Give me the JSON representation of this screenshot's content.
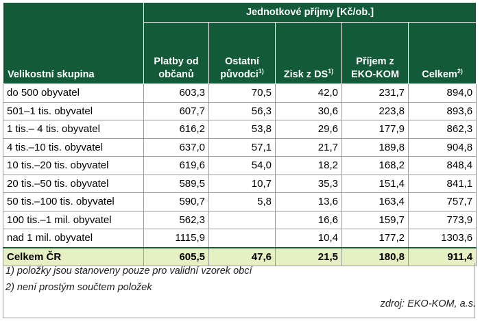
{
  "table": {
    "group_header": "Jednotkové příjmy [Kč/ob.]",
    "row_header": "Velikostní skupina",
    "columns": [
      {
        "label": "Platby od občanů",
        "sup": ""
      },
      {
        "label": "Ostatní původci",
        "sup": "1)"
      },
      {
        "label": "Zisk z DS",
        "sup": "1)"
      },
      {
        "label": "Příjem z EKO-KOM",
        "sup": ""
      },
      {
        "label": "Celkem",
        "sup": "2)"
      }
    ],
    "rows": [
      {
        "group": "do 500 obyvatel",
        "values": [
          "603,3",
          "70,5",
          "42,0",
          "231,7",
          "894,0"
        ]
      },
      {
        "group": "501–1 tis. obyvatel",
        "values": [
          "607,7",
          "56,3",
          "30,6",
          "223,8",
          "893,6"
        ]
      },
      {
        "group": "1 tis.– 4 tis. obyvatel",
        "values": [
          "616,2",
          "53,8",
          "29,6",
          "177,9",
          "862,3"
        ]
      },
      {
        "group": "4 tis.–10 tis. obyvatel",
        "values": [
          "637,0",
          "57,1",
          "21,7",
          "189,8",
          "904,8"
        ]
      },
      {
        "group": "10 tis.–20 tis. obyvatel",
        "values": [
          "619,6",
          "54,0",
          "18,2",
          "168,2",
          "848,4"
        ]
      },
      {
        "group": "20 tis.–50 tis. obyvatel",
        "values": [
          "589,5",
          "10,7",
          "35,3",
          "151,4",
          "841,1"
        ]
      },
      {
        "group": "50 tis.–100 tis. obyvatel",
        "values": [
          "590,7",
          "5,8",
          "13,6",
          "163,4",
          "757,7"
        ]
      },
      {
        "group": "100 tis.–1 mil. obyvatel",
        "values": [
          "562,3",
          "",
          "16,6",
          "159,7",
          "773,9"
        ]
      },
      {
        "group": "nad 1 mil. obyvatel",
        "values": [
          "1115,9",
          "",
          "10,4",
          "177,2",
          "1303,6"
        ]
      }
    ],
    "total": {
      "group": "Celkem ČR",
      "values": [
        "605,5",
        "47,6",
        "21,5",
        "180,8",
        "911,4"
      ]
    }
  },
  "notes": [
    "1) položky jsou stanoveny pouze pro validní vzorek obcí",
    "2) není prostým součtem položek"
  ],
  "source": "zdroj: EKO-KOM, a.s."
}
